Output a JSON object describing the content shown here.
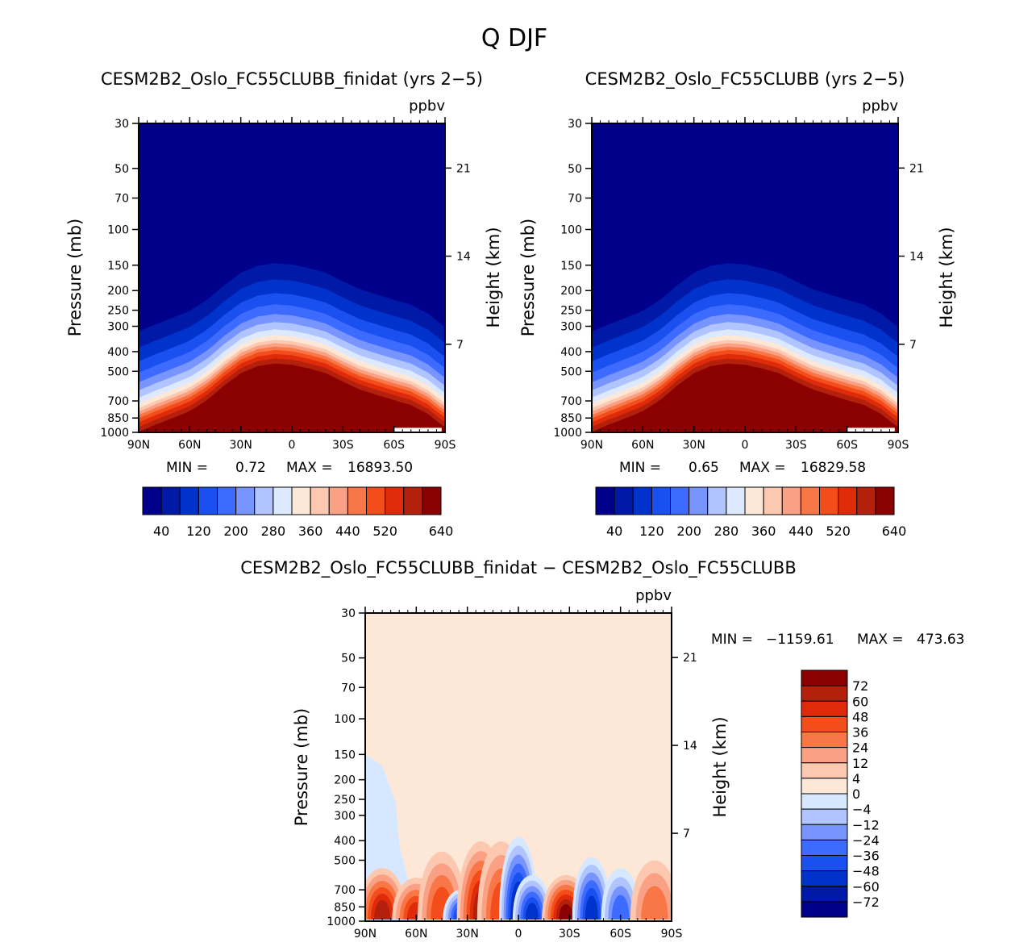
{
  "figure": {
    "title": "Q DJF",
    "diff_title": "CESM2B2_Oslo_FC55CLUBB_finidat − CESM2B2_Oslo_FC55CLUBB"
  },
  "colors": {
    "abs_levels": [
      "#00008b",
      "#0019a6",
      "#0033cc",
      "#1a4ff0",
      "#3d6bff",
      "#7894ff",
      "#b0c4ff",
      "#dde9ff",
      "#fde8d8",
      "#fcc9b0",
      "#faa084",
      "#f97746",
      "#f44d1c",
      "#e02b0a",
      "#b3200c",
      "#8b0000"
    ],
    "diff_levels": [
      "#00008b",
      "#0019a6",
      "#0033cc",
      "#1a4ff0",
      "#3d6bff",
      "#7894ff",
      "#b0c4ff",
      "#d6e8ff",
      "#fde8d8",
      "#fcc9b0",
      "#faa084",
      "#f97746",
      "#f44d1c",
      "#e02b0a",
      "#b3200c",
      "#8b0000"
    ]
  },
  "chart_data": [
    {
      "type": "contour",
      "title": "CESM2B2_Oslo_FC55CLUBB_finidat (yrs 2−5)",
      "units": "ppbv",
      "ylabel": "Pressure (mb)",
      "ylabel_right": "Height (km)",
      "x_ticks": [
        "90N",
        "60N",
        "30N",
        "0",
        "30S",
        "60S",
        "90S"
      ],
      "y_ticks": [
        30,
        50,
        70,
        100,
        150,
        200,
        250,
        300,
        400,
        500,
        700,
        850,
        1000
      ],
      "height_ticks": [
        21,
        14,
        7
      ],
      "ylim": [
        1000,
        30
      ],
      "min_label": "MIN =",
      "min_value": "0.72",
      "max_label": "MAX =",
      "max_value": "16893.50",
      "contour_levels": [
        40,
        80,
        120,
        160,
        200,
        240,
        280,
        320,
        360,
        400,
        440,
        480,
        520,
        560,
        600,
        640
      ],
      "colorbar_labels": [
        "40",
        "120",
        "200",
        "280",
        "360",
        "440",
        "520",
        "640"
      ],
      "boundary_profile": {
        "lat": [
          -90,
          -80,
          -70,
          -60,
          -50,
          -40,
          -30,
          -20,
          -10,
          0,
          10,
          20,
          30,
          40,
          50,
          60,
          70,
          80,
          90
        ],
        "pressure_mb": [
          720,
          620,
          560,
          530,
          500,
          470,
          430,
          390,
          370,
          355,
          350,
          360,
          390,
          450,
          530,
          600,
          650,
          700,
          760
        ]
      }
    },
    {
      "type": "contour",
      "title": "CESM2B2_Oslo_FC55CLUBB (yrs 2−5)",
      "units": "ppbv",
      "ylabel": "Pressure (mb)",
      "ylabel_right": "Height (km)",
      "x_ticks": [
        "90N",
        "60N",
        "30N",
        "0",
        "30S",
        "60S",
        "90S"
      ],
      "y_ticks": [
        30,
        50,
        70,
        100,
        150,
        200,
        250,
        300,
        400,
        500,
        700,
        850,
        1000
      ],
      "height_ticks": [
        21,
        14,
        7
      ],
      "ylim": [
        1000,
        30
      ],
      "min_label": "MIN =",
      "min_value": "0.65",
      "max_label": "MAX =",
      "max_value": "16829.58",
      "contour_levels": [
        40,
        80,
        120,
        160,
        200,
        240,
        280,
        320,
        360,
        400,
        440,
        480,
        520,
        560,
        600,
        640
      ],
      "colorbar_labels": [
        "40",
        "120",
        "200",
        "280",
        "360",
        "440",
        "520",
        "640"
      ],
      "boundary_profile": {
        "lat": [
          -90,
          -80,
          -70,
          -60,
          -50,
          -40,
          -30,
          -20,
          -10,
          0,
          10,
          20,
          30,
          40,
          50,
          60,
          70,
          80,
          90
        ],
        "pressure_mb": [
          720,
          620,
          560,
          530,
          500,
          470,
          430,
          390,
          370,
          355,
          350,
          360,
          390,
          450,
          530,
          600,
          650,
          700,
          760
        ]
      }
    },
    {
      "type": "contour",
      "title": "CESM2B2_Oslo_FC55CLUBB_finidat − CESM2B2_Oslo_FC55CLUBB",
      "units": "ppbv",
      "ylabel": "Pressure (mb)",
      "ylabel_right": "Height (km)",
      "x_ticks": [
        "90N",
        "60N",
        "30N",
        "0",
        "30S",
        "60S",
        "90S"
      ],
      "y_ticks": [
        30,
        50,
        70,
        100,
        150,
        200,
        250,
        300,
        400,
        500,
        700,
        850,
        1000
      ],
      "height_ticks": [
        21,
        14,
        7
      ],
      "ylim": [
        1000,
        30
      ],
      "min_label": "MIN =",
      "min_value": "−1159.61",
      "max_label": "MAX =",
      "max_value": "473.63",
      "contour_levels": [
        -72,
        -60,
        -48,
        -36,
        -24,
        -12,
        -4,
        0,
        4,
        12,
        24,
        36,
        48,
        60,
        72
      ],
      "colorbar_labels": [
        "72",
        "60",
        "48",
        "36",
        "24",
        "12",
        "4",
        "0",
        "−4",
        "−12",
        "−24",
        "−36",
        "−48",
        "−60",
        "−72"
      ],
      "anomaly_features": [
        {
          "lat": 80,
          "p_top": 450,
          "sign": "positive",
          "strength": 0.8
        },
        {
          "lat": 60,
          "p_top": 520,
          "sign": "positive",
          "strength": 0.7
        },
        {
          "lat": 45,
          "p_top": 350,
          "sign": "positive",
          "strength": 0.6
        },
        {
          "lat": 33,
          "p_top": 620,
          "sign": "negative",
          "strength": 0.9
        },
        {
          "lat": 22,
          "p_top": 300,
          "sign": "positive",
          "strength": 0.9
        },
        {
          "lat": 10,
          "p_top": 300,
          "sign": "positive",
          "strength": 0.6
        },
        {
          "lat": 0,
          "p_top": 280,
          "sign": "negative",
          "strength": 1.0
        },
        {
          "lat": -8,
          "p_top": 500,
          "sign": "negative",
          "strength": 0.8
        },
        {
          "lat": -28,
          "p_top": 500,
          "sign": "positive",
          "strength": 1.0
        },
        {
          "lat": -43,
          "p_top": 380,
          "sign": "negative",
          "strength": 0.8
        },
        {
          "lat": -60,
          "p_top": 450,
          "sign": "negative",
          "strength": 0.6
        },
        {
          "lat": -80,
          "p_top": 400,
          "sign": "positive",
          "strength": 0.4
        }
      ]
    }
  ]
}
